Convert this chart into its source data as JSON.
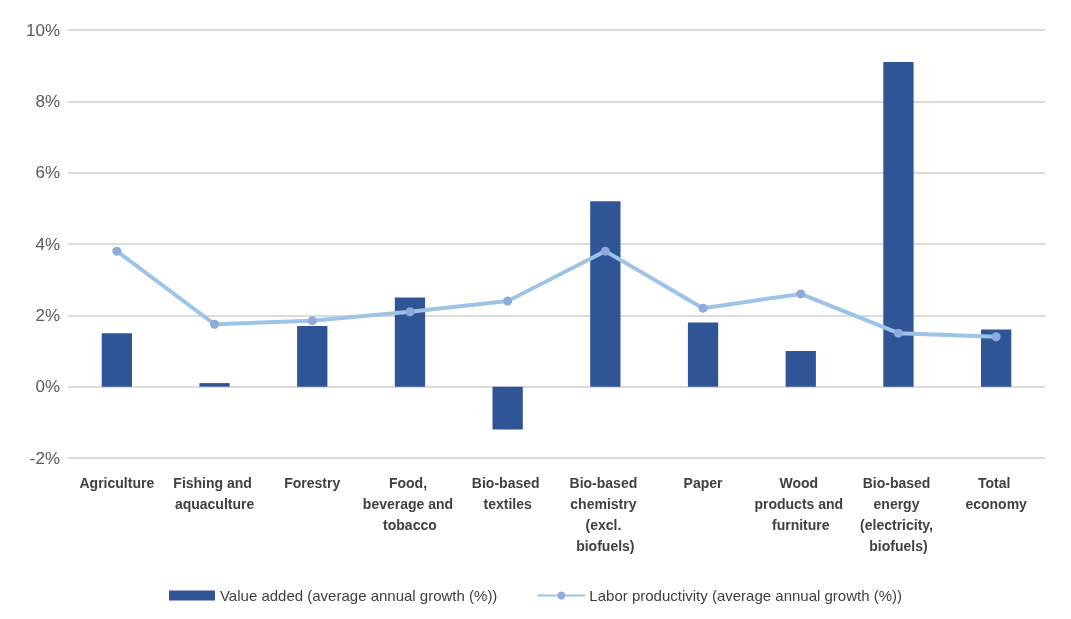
{
  "chart_data": {
    "type": "bar",
    "categories": [
      "Agriculture",
      "Fishing and aquaculture",
      "Forestry",
      "Food, beverage and tobacco",
      "Bio-based textiles",
      "Bio-based chemistry (excl. biofuels)",
      "Paper",
      "Wood products and furniture",
      "Bio-based energy (electricity, biofuels)",
      "Total economy"
    ],
    "series": [
      {
        "name": "Value added (average annual growth (%))",
        "color": "#2f5597",
        "values": [
          1.5,
          0.1,
          1.7,
          2.5,
          -1.2,
          5.2,
          1.8,
          1.0,
          9.1,
          1.6
        ]
      },
      {
        "name": "Labor productivity (average annual growth (%))",
        "type": "line",
        "color": "#9dc3e6",
        "marker": "circle",
        "values": [
          3.8,
          1.75,
          1.85,
          2.1,
          2.4,
          3.8,
          2.2,
          2.6,
          1.5,
          1.4
        ]
      }
    ],
    "ylim": [
      -2,
      10
    ],
    "yticks": [
      {
        "value": -2,
        "label": "-2%"
      },
      {
        "value": 0,
        "label": "0%"
      },
      {
        "value": 2,
        "label": "2%"
      },
      {
        "value": 4,
        "label": "4%"
      },
      {
        "value": 6,
        "label": "6%"
      },
      {
        "value": 8,
        "label": "8%"
      },
      {
        "value": 10,
        "label": "10%"
      }
    ],
    "grid": "y",
    "legend": "bottom"
  }
}
